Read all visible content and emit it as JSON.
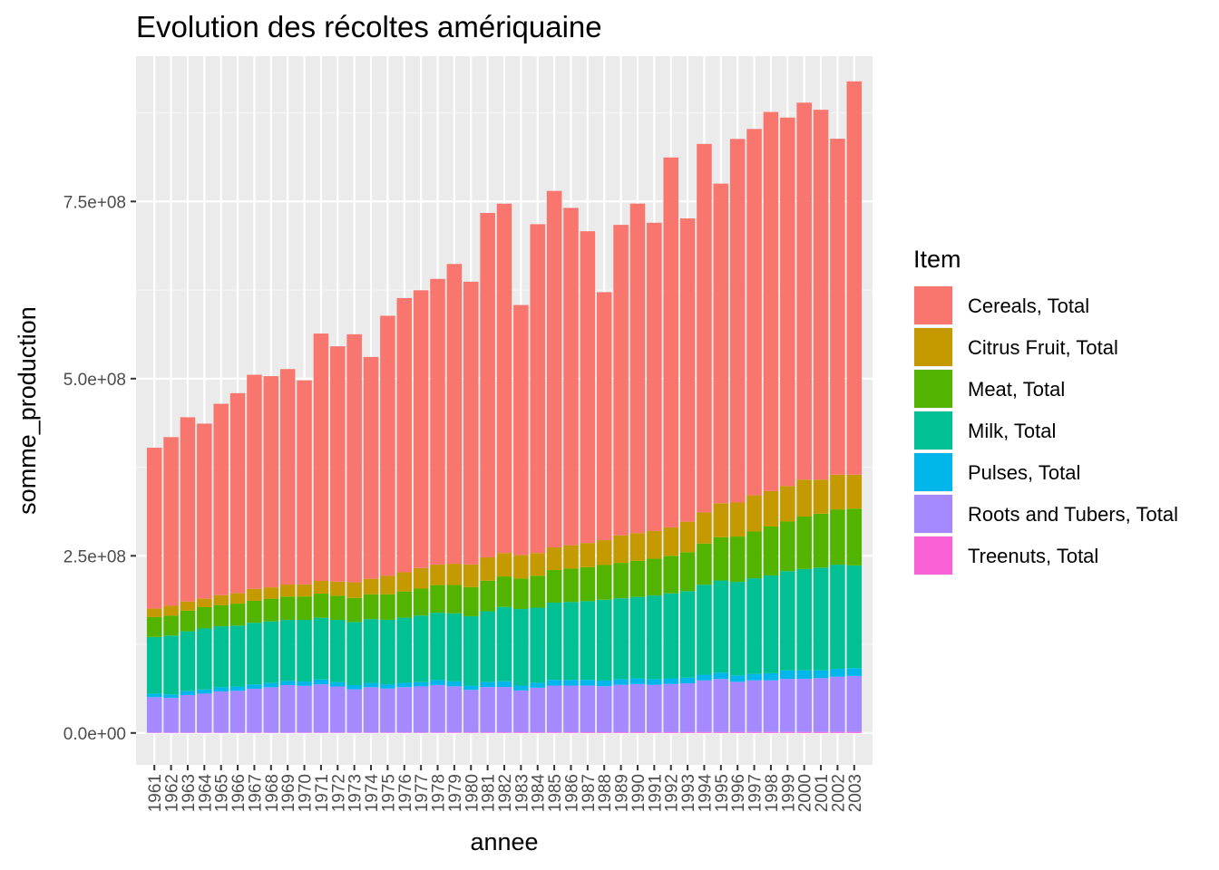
{
  "chart_data": {
    "type": "bar",
    "stacked": true,
    "title": "Evolution des récoltes amériquaine",
    "xlabel": "annee",
    "ylabel": "somme_production",
    "ylim": [
      -45000000.0,
      955000000.0
    ],
    "yticks": [
      0,
      250000000,
      500000000,
      750000000
    ],
    "ytick_labels": [
      "0.0e+00",
      "2.5e+08",
      "5.0e+08",
      "7.5e+08"
    ],
    "grid": true,
    "legend": {
      "title": "Item",
      "position": "right"
    },
    "categories": [
      "1961",
      "1962",
      "1963",
      "1964",
      "1965",
      "1966",
      "1967",
      "1968",
      "1969",
      "1970",
      "1971",
      "1972",
      "1973",
      "1974",
      "1975",
      "1976",
      "1977",
      "1978",
      "1979",
      "1980",
      "1981",
      "1982",
      "1983",
      "1984",
      "1985",
      "1986",
      "1987",
      "1988",
      "1989",
      "1990",
      "1991",
      "1992",
      "1993",
      "1994",
      "1995",
      "1996",
      "1997",
      "1998",
      "1999",
      "2000",
      "2001",
      "2002",
      "2003"
    ],
    "series": [
      {
        "name": "Cereals, Total",
        "color": "#F8766D",
        "values": [
          227000000,
          238000000,
          260000000,
          247000000,
          270000000,
          282000000,
          302000000,
          298000000,
          304000000,
          288000000,
          349000000,
          332000000,
          350000000,
          313000000,
          367000000,
          387000000,
          392000000,
          403000000,
          423000000,
          399000000,
          486000000,
          493000000,
          353000000,
          464000000,
          503000000,
          476000000,
          440000000,
          350000000,
          438000000,
          465000000,
          435000000,
          522000000,
          428000000,
          520000000,
          451000000,
          513000000,
          517000000,
          535000000,
          520000000,
          532000000,
          522000000,
          474000000,
          555000000
        ]
      },
      {
        "name": "Citrus Fruit, Total",
        "color": "#C49A00",
        "values": [
          12000000,
          14000000,
          13000000,
          12000000,
          14000000,
          15000000,
          17000000,
          16000000,
          17000000,
          17000000,
          18000000,
          20000000,
          22000000,
          22000000,
          26000000,
          27000000,
          29000000,
          29000000,
          30000000,
          32000000,
          33000000,
          33000000,
          33000000,
          32000000,
          32000000,
          33000000,
          34000000,
          35000000,
          39000000,
          39000000,
          39000000,
          40000000,
          43000000,
          44000000,
          48000000,
          48000000,
          51000000,
          50000000,
          50000000,
          52000000,
          48000000,
          49000000,
          48000000
        ]
      },
      {
        "name": "Meat, Total",
        "color": "#53B400",
        "values": [
          28000000,
          28000000,
          29000000,
          30000000,
          30000000,
          31000000,
          31000000,
          32000000,
          33000000,
          33000000,
          34000000,
          34000000,
          34000000,
          35000000,
          36000000,
          37000000,
          38000000,
          39000000,
          40000000,
          41000000,
          43000000,
          43000000,
          43000000,
          45000000,
          46000000,
          47000000,
          48000000,
          49000000,
          50000000,
          51000000,
          52000000,
          53000000,
          55000000,
          58000000,
          61000000,
          64000000,
          66000000,
          69000000,
          70000000,
          74000000,
          76000000,
          78000000,
          80000000
        ]
      },
      {
        "name": "Milk, Total",
        "color": "#00C094",
        "values": [
          80000000,
          83000000,
          84000000,
          86000000,
          86000000,
          86000000,
          87000000,
          87000000,
          86000000,
          87000000,
          87000000,
          88000000,
          89000000,
          90000000,
          91000000,
          92000000,
          94000000,
          95000000,
          96000000,
          98000000,
          100000000,
          105000000,
          108000000,
          106000000,
          109000000,
          110000000,
          111000000,
          114000000,
          114000000,
          115000000,
          118000000,
          120000000,
          122000000,
          127000000,
          130000000,
          132000000,
          135000000,
          138000000,
          140000000,
          143000000,
          145000000,
          147000000,
          145000000
        ]
      },
      {
        "name": "Pulses, Total",
        "color": "#00B6EB",
        "values": [
          5000000,
          5000000,
          6000000,
          6000000,
          6000000,
          6000000,
          6000000,
          6000000,
          6000000,
          6000000,
          7000000,
          6000000,
          6000000,
          6000000,
          6000000,
          6000000,
          6000000,
          7000000,
          7000000,
          6000000,
          7000000,
          8000000,
          7000000,
          7000000,
          8000000,
          8000000,
          8000000,
          8000000,
          8000000,
          8000000,
          8000000,
          8000000,
          8000000,
          8000000,
          9000000,
          9000000,
          9000000,
          10000000,
          12000000,
          12000000,
          11000000,
          11000000,
          11000000
        ]
      },
      {
        "name": "Roots and Tubers, Total",
        "color": "#A58AFF",
        "values": [
          50000000,
          49000000,
          53000000,
          55000000,
          58000000,
          59000000,
          62000000,
          64000000,
          67000000,
          66000000,
          68000000,
          65000000,
          61000000,
          64000000,
          62000000,
          64000000,
          65000000,
          67000000,
          65000000,
          60000000,
          64000000,
          64000000,
          59000000,
          63000000,
          66000000,
          66000000,
          66000000,
          65000000,
          67000000,
          68000000,
          67000000,
          68000000,
          69000000,
          73000000,
          75000000,
          71000000,
          73000000,
          73000000,
          75000000,
          75000000,
          76000000,
          78000000,
          79000000
        ]
      },
      {
        "name": "Treenuts, Total",
        "color": "#FB61D7",
        "values": [
          500000,
          500000,
          500000,
          500000,
          500000,
          500000,
          500000,
          500000,
          500000,
          600000,
          600000,
          600000,
          600000,
          600000,
          700000,
          700000,
          700000,
          700000,
          800000,
          800000,
          800000,
          900000,
          900000,
          900000,
          900000,
          900000,
          1000000,
          1000000,
          1000000,
          1000000,
          1000000,
          1100000,
          1100000,
          1200000,
          1200000,
          1200000,
          1300000,
          1300000,
          1400000,
          1400000,
          1400000,
          1500000,
          1500000
        ]
      }
    ]
  }
}
